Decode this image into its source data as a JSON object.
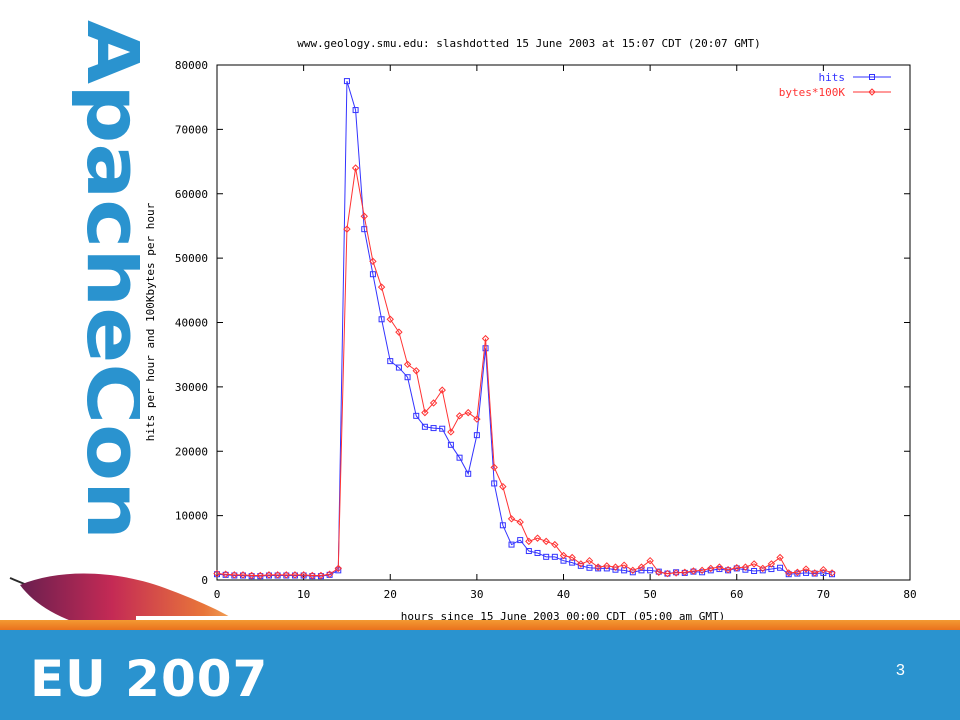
{
  "branding": {
    "vertical_logo_text": "ApacheCon",
    "footer_text": "EU 2007",
    "brand_color": "#2a93cf",
    "stripe_color": "#f39a32",
    "feather_icon": "apache-feather-icon"
  },
  "slide": {
    "number": "3"
  },
  "chart_data": {
    "type": "line",
    "title": "www.geology.smu.edu: slashdotted 15 June 2003 at 15:07 CDT (20:07 GMT)",
    "xlabel": "hours since 15 June 2003 00:00 CDT  (05:00 am GMT)",
    "ylabel": "hits per hour and 100Kbytes per hour",
    "xlim": [
      0,
      80
    ],
    "ylim": [
      0,
      80000
    ],
    "xticks": [
      "0",
      "10",
      "20",
      "30",
      "40",
      "50",
      "60",
      "70",
      "80"
    ],
    "yticks": [
      "0",
      "10000",
      "20000",
      "30000",
      "40000",
      "50000",
      "60000",
      "70000",
      "80000"
    ],
    "grid": false,
    "legend_position": "top-right",
    "series": [
      {
        "name": "hits",
        "color": "#3333ff",
        "marker": "square",
        "x": [
          0,
          1,
          2,
          3,
          4,
          5,
          6,
          7,
          8,
          9,
          10,
          11,
          12,
          13,
          14,
          15,
          16,
          17,
          18,
          19,
          20,
          21,
          22,
          23,
          24,
          25,
          26,
          27,
          28,
          29,
          30,
          31,
          32,
          33,
          34,
          35,
          36,
          37,
          38,
          39,
          40,
          41,
          42,
          43,
          44,
          45,
          46,
          47,
          48,
          49,
          50,
          51,
          52,
          53,
          54,
          55,
          56,
          57,
          58,
          59,
          60,
          61,
          62,
          63,
          64,
          65,
          66,
          67,
          68,
          69,
          70,
          71
        ],
        "values": [
          900,
          800,
          700,
          700,
          600,
          600,
          700,
          700,
          700,
          700,
          700,
          600,
          600,
          800,
          1500,
          77500,
          73000,
          54500,
          47500,
          40500,
          34000,
          33000,
          31500,
          25500,
          23800,
          23600,
          23500,
          21000,
          19000,
          16500,
          22500,
          36000,
          15000,
          8500,
          5500,
          6200,
          4500,
          4200,
          3600,
          3600,
          3000,
          2700,
          2200,
          1900,
          1800,
          1800,
          1600,
          1500,
          1200,
          1500,
          1500,
          1300,
          1000,
          1200,
          1100,
          1300,
          1200,
          1500,
          1700,
          1500,
          1800,
          1600,
          1400,
          1500,
          1700,
          1900,
          900,
          1000,
          1100,
          1000,
          1100,
          900
        ]
      },
      {
        "name": "bytes*100K",
        "color": "#ff3333",
        "marker": "diamond",
        "x": [
          0,
          1,
          2,
          3,
          4,
          5,
          6,
          7,
          8,
          9,
          10,
          11,
          12,
          13,
          14,
          15,
          16,
          17,
          18,
          19,
          20,
          21,
          22,
          23,
          24,
          25,
          26,
          27,
          28,
          29,
          30,
          31,
          32,
          33,
          34,
          35,
          36,
          37,
          38,
          39,
          40,
          41,
          42,
          43,
          44,
          45,
          46,
          47,
          48,
          49,
          50,
          51,
          52,
          53,
          54,
          55,
          56,
          57,
          58,
          59,
          60,
          61,
          62,
          63,
          64,
          65,
          66,
          67,
          68,
          69,
          70,
          71
        ],
        "values": [
          1000,
          900,
          800,
          800,
          700,
          700,
          800,
          800,
          800,
          800,
          800,
          700,
          700,
          900,
          1800,
          54500,
          64000,
          56500,
          49500,
          45500,
          40500,
          38500,
          33500,
          32500,
          26000,
          27500,
          29500,
          23000,
          25500,
          26000,
          25000,
          37500,
          17500,
          14500,
          9500,
          9000,
          6000,
          6500,
          6000,
          5500,
          3800,
          3500,
          2500,
          3000,
          2000,
          2200,
          2000,
          2300,
          1500,
          2000,
          3000,
          1200,
          1000,
          1100,
          1200,
          1400,
          1500,
          1800,
          2000,
          1600,
          1900,
          2000,
          2500,
          1800,
          2500,
          3500,
          1100,
          1200,
          1700,
          1100,
          1600,
          1100
        ]
      }
    ]
  }
}
